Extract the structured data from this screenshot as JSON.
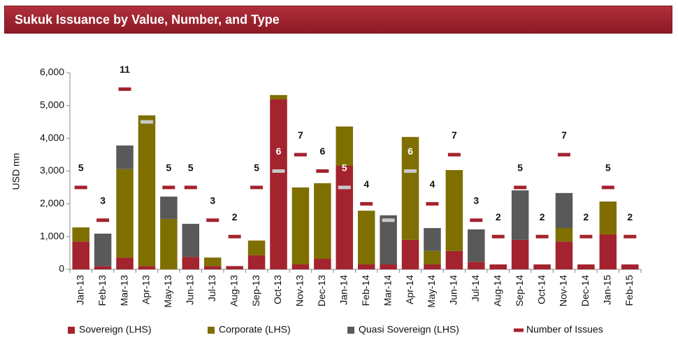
{
  "chart_data": {
    "type": "bar",
    "stacked": true,
    "title": "Sukuk Issuance by Value, Number, and Type",
    "ylabel": "USD mn",
    "categories": [
      "Jan-13",
      "Feb-13",
      "Mar-13",
      "Apr-13",
      "May-13",
      "Jun-13",
      "Jul-13",
      "Aug-13",
      "Sep-13",
      "Oct-13",
      "Nov-13",
      "Dec-13",
      "Jan-14",
      "Feb-14",
      "Mar-14",
      "Apr-14",
      "May-14",
      "Jun-14",
      "Jul-14",
      "Aug-14",
      "Sep-14",
      "Oct-14",
      "Nov-14",
      "Dec-14",
      "Jan-15",
      "Feb-15"
    ],
    "series": [
      {
        "name": "Sovereign (LHS)",
        "color": "#a3232e",
        "values": [
          850,
          100,
          360,
          100,
          0,
          380,
          100,
          100,
          430,
          5190,
          150,
          320,
          3160,
          150,
          150,
          900,
          150,
          560,
          230,
          150,
          900,
          150,
          850,
          150,
          1070,
          150
        ]
      },
      {
        "name": "Corporate (LHS)",
        "color": "#7f6f00",
        "values": [
          430,
          0,
          2700,
          4600,
          1540,
          0,
          260,
          0,
          450,
          130,
          2350,
          2310,
          1200,
          1640,
          0,
          3140,
          410,
          2470,
          0,
          0,
          0,
          0,
          410,
          0,
          1000,
          0
        ]
      },
      {
        "name": "Quasi Sovereign (LHS)",
        "color": "#595959",
        "values": [
          0,
          990,
          720,
          0,
          680,
          1010,
          0,
          0,
          0,
          0,
          0,
          0,
          0,
          0,
          1500,
          0,
          700,
          0,
          990,
          0,
          1510,
          0,
          1070,
          0,
          0,
          0
        ]
      },
      {
        "name": "Number of Issues",
        "color": "#a3232e",
        "axis": "y2",
        "values": [
          5,
          3,
          11,
          9,
          5,
          5,
          3,
          2,
          5,
          6,
          7,
          6,
          5,
          4,
          3,
          6,
          4,
          7,
          3,
          2,
          5,
          2,
          7,
          2,
          5,
          2
        ]
      }
    ],
    "ylim": [
      0,
      6000
    ],
    "yticks": [
      0,
      {
        "value": 1000,
        "label": "1,000"
      },
      {
        "value": 2000,
        "label": "2,000"
      },
      {
        "value": 3000,
        "label": "3,000"
      },
      {
        "value": 4000,
        "label": "4,000"
      },
      {
        "value": 5000,
        "label": "5,000"
      },
      {
        "value": 6000,
        "label": "6,000"
      }
    ],
    "y2lim": [
      0,
      12
    ],
    "grid": false
  }
}
